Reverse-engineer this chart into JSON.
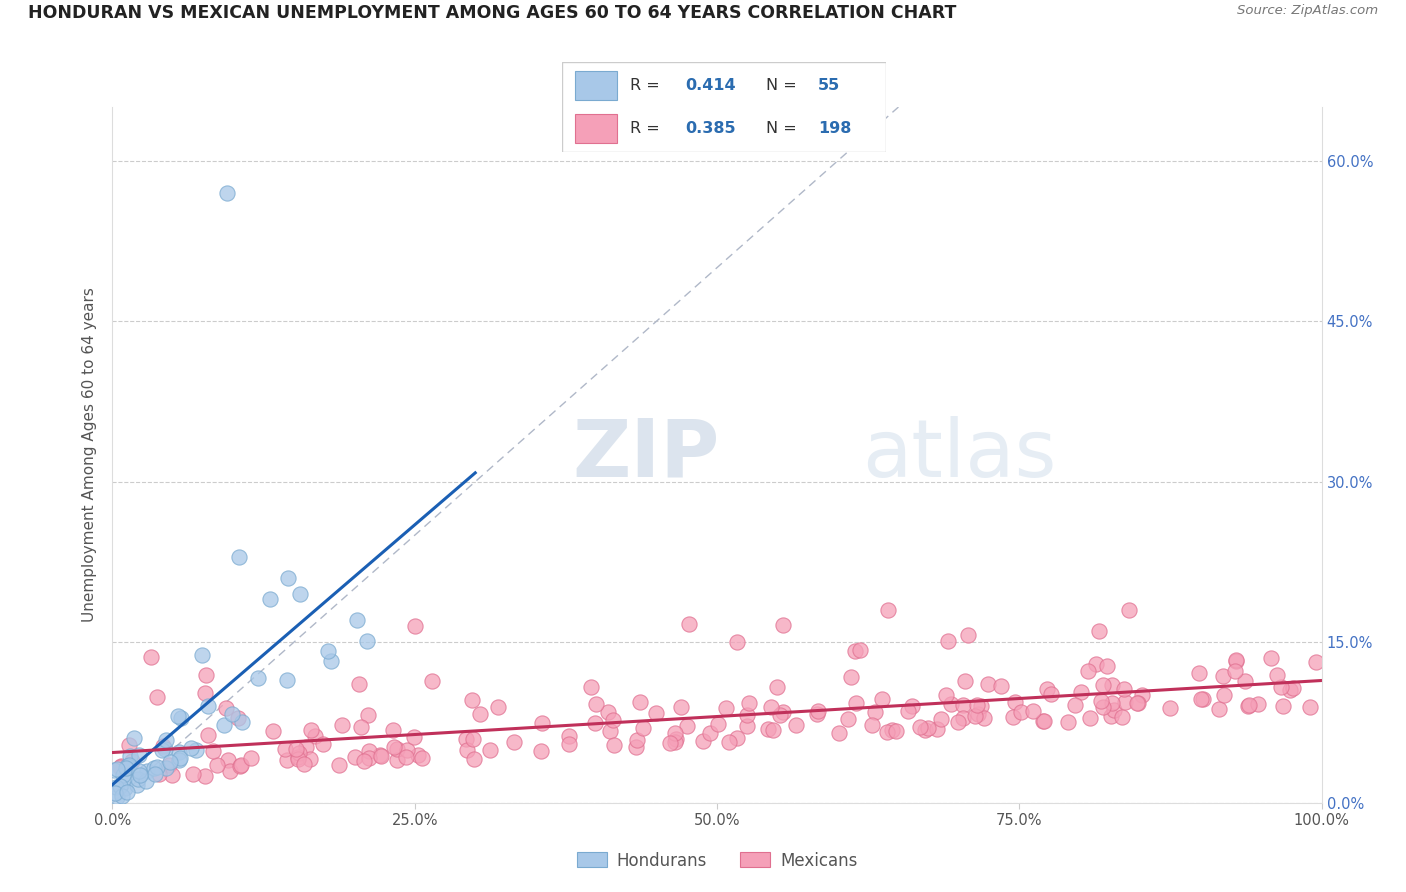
{
  "title": "HONDURAN VS MEXICAN UNEMPLOYMENT AMONG AGES 60 TO 64 YEARS CORRELATION CHART",
  "source": "Source: ZipAtlas.com",
  "ylabel": "Unemployment Among Ages 60 to 64 years",
  "honduran_R": 0.414,
  "honduran_N": 55,
  "mexican_R": 0.385,
  "mexican_N": 198,
  "honduran_color": "#a8c8e8",
  "honduran_edge_color": "#7aaad0",
  "honduran_line_color": "#1a5fb4",
  "mexican_color": "#f5a0b8",
  "mexican_edge_color": "#e07090",
  "mexican_line_color": "#c0305a",
  "diagonal_color": "#b0b8c8",
  "watermark_color": "#c8d8e8",
  "xlim": [
    0,
    1.0
  ],
  "ylim": [
    0,
    0.65
  ],
  "xticks": [
    0.0,
    0.25,
    0.5,
    0.75,
    1.0
  ],
  "yticks": [
    0.0,
    0.15,
    0.3,
    0.45,
    0.6
  ],
  "xticklabels": [
    "0.0%",
    "25.0%",
    "50.0%",
    "75.0%",
    "100.0%"
  ],
  "right_yticklabels": [
    "0.0%",
    "15.0%",
    "30.0%",
    "45.0%",
    "60.0%"
  ]
}
